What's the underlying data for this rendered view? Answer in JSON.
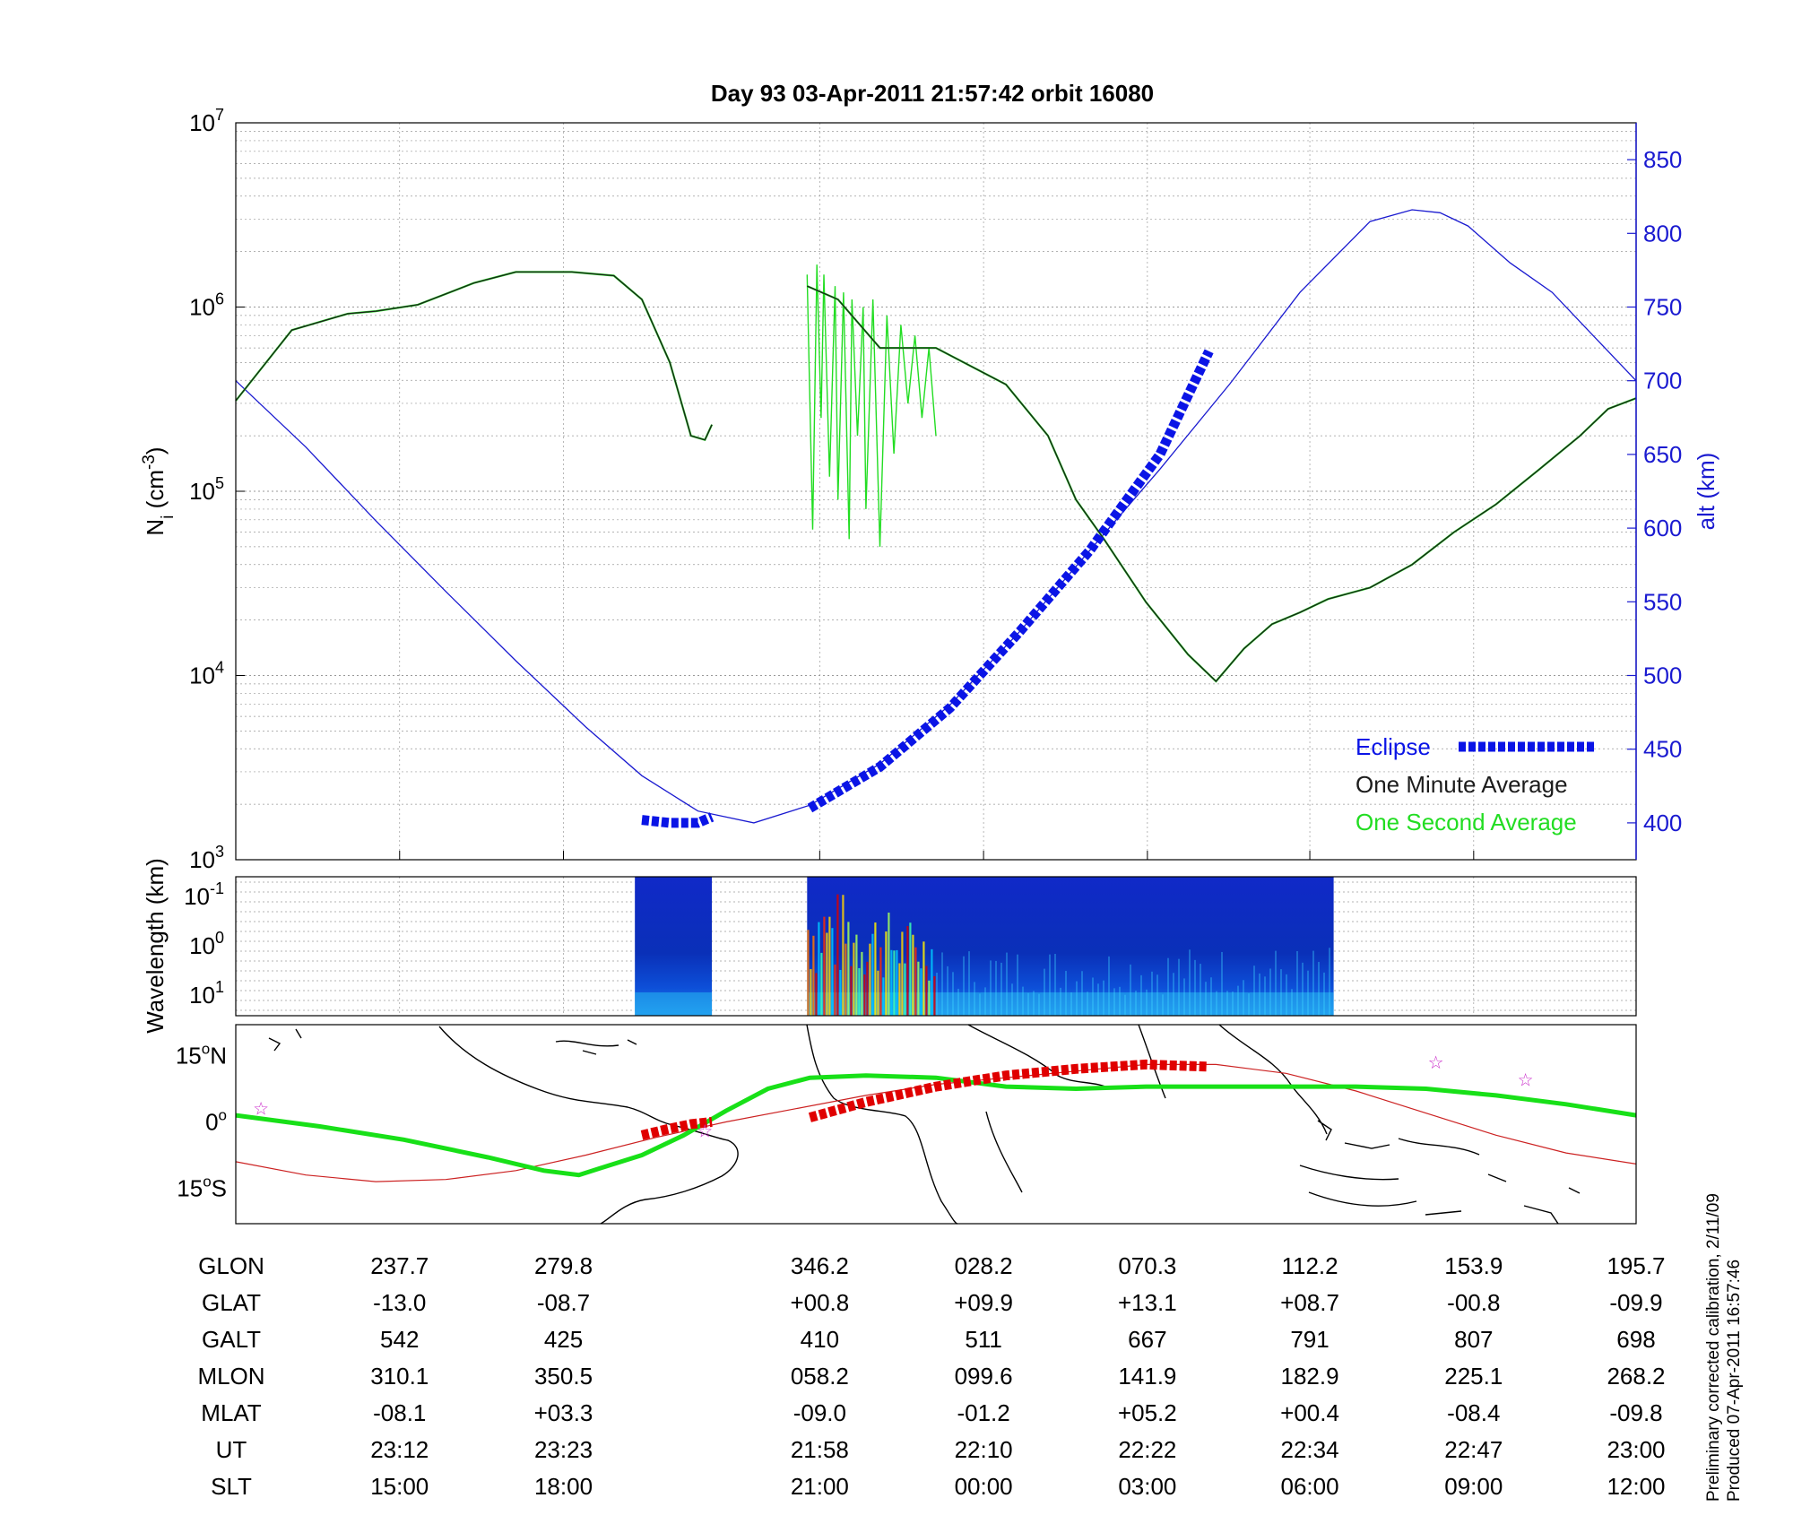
{
  "title": "Day 93  03-Apr-2011 21:57:42   orbit 16080",
  "colors": {
    "one_minute": "#1c1c1c",
    "one_second": "#22dd22",
    "altitude": "#1a1ad0",
    "eclipse": "#0a14e6",
    "track_green": "#18e018",
    "track_red": "#e00000",
    "mag_equator": "#cc2222",
    "star": "#cc33cc"
  },
  "chart_data": [
    {
      "type": "line",
      "panel": "density",
      "ylabel_left": "Ni (cm-3)",
      "ylabel_left_main": "N",
      "ylabel_left_sub": "i",
      "ylabel_left_unit_open": " (cm",
      "ylabel_left_unit_sup": "-3",
      "ylabel_left_unit_close": ")",
      "yscale_left": "log",
      "ylim_left": [
        1000,
        10000000
      ],
      "yticks_left": [
        {
          "base": "10",
          "exp": "3"
        },
        {
          "base": "10",
          "exp": "4"
        },
        {
          "base": "10",
          "exp": "5"
        },
        {
          "base": "10",
          "exp": "6"
        },
        {
          "base": "10",
          "exp": "7"
        }
      ],
      "ylabel_right": "alt (km)",
      "ylim_right": [
        375,
        875
      ],
      "yticks_right": [
        "400",
        "450",
        "500",
        "550",
        "600",
        "650",
        "700",
        "750",
        "800",
        "850"
      ],
      "grid": true,
      "legend_position": "bottom-right",
      "legend": [
        {
          "label": "Eclipse",
          "color": "#0a14e6",
          "style": "thick-dashed"
        },
        {
          "label": "One Minute Average",
          "color": "#1c1c1c",
          "style": "none"
        },
        {
          "label": "One Second Average",
          "color": "#22dd22",
          "style": "none"
        }
      ],
      "x": [
        0.0,
        0.04,
        0.1,
        0.15,
        0.2,
        0.25,
        0.28,
        0.31,
        0.325,
        0.335,
        0.34,
        0.408,
        0.43,
        0.46,
        0.5,
        0.55,
        0.6,
        0.65,
        0.67,
        0.68,
        0.695,
        0.72,
        0.75,
        0.78,
        0.81,
        0.84,
        0.87,
        0.9,
        0.93,
        0.96,
        0.98,
        1.0
      ],
      "series": [
        {
          "name": "One Minute Average",
          "segments": [
            {
              "x": [
                0.0,
                0.04,
                0.08,
                0.1,
                0.13,
                0.17,
                0.2,
                0.24,
                0.27,
                0.29,
                0.31,
                0.325,
                0.335,
                0.34
              ],
              "y": [
                310000,
                750000,
                920000,
                950000,
                1030000,
                1350000,
                1550000,
                1550000,
                1480000,
                1100000,
                500000,
                200000,
                190000,
                230000
              ]
            },
            {
              "x": [
                0.408,
                0.43,
                0.46,
                0.5,
                0.55,
                0.58,
                0.6,
                0.62,
                0.65,
                0.68,
                0.7,
                0.72,
                0.74,
                0.76,
                0.78,
                0.81,
                0.84,
                0.87,
                0.9,
                0.93,
                0.96,
                0.98,
                1.0
              ],
              "y": [
                1300000,
                1100000,
                600000,
                600000,
                380000,
                200000,
                90000,
                55000,
                25000,
                13000,
                9300,
                14000,
                19000,
                22000,
                26000,
                30000,
                40000,
                60000,
                85000,
                130000,
                200000,
                280000,
                320000
              ]
            }
          ]
        },
        {
          "name": "One Second Average",
          "segments": [
            {
              "x": [
                0.408,
                0.412,
                0.415,
                0.418,
                0.42,
                0.424,
                0.428,
                0.43,
                0.434,
                0.438,
                0.44,
                0.444,
                0.448,
                0.45,
                0.455,
                0.46,
                0.465,
                0.47,
                0.475,
                0.48,
                0.485,
                0.49,
                0.495,
                0.5
              ],
              "y": [
                1500000,
                62000,
                1700000,
                250000,
                1500000,
                120000,
                1300000,
                90000,
                1200000,
                55000,
                1100000,
                200000,
                1000000,
                80000,
                1100000,
                50000,
                900000,
                160000,
                800000,
                300000,
                700000,
                250000,
                600000,
                200000
              ]
            }
          ]
        },
        {
          "name": "alt (km)",
          "axis": "right",
          "x": [
            0.0,
            0.05,
            0.1,
            0.15,
            0.2,
            0.25,
            0.29,
            0.33,
            0.37,
            0.41,
            0.46,
            0.51,
            0.56,
            0.61,
            0.66,
            0.71,
            0.76,
            0.81,
            0.84,
            0.86,
            0.88,
            0.91,
            0.94,
            0.97,
            1.0
          ],
          "y": [
            700,
            655,
            605,
            557,
            510,
            465,
            432,
            408,
            400,
            412,
            440,
            480,
            530,
            585,
            640,
            698,
            760,
            808,
            816,
            814,
            805,
            780,
            760,
            730,
            700
          ]
        },
        {
          "name": "Eclipse",
          "axis": "right",
          "segments": [
            {
              "x": [
                0.29,
                0.31,
                0.33,
                0.34
              ],
              "y": [
                402,
                400,
                400,
                404
              ]
            },
            {
              "x": [
                0.41,
                0.46,
                0.51,
                0.56,
                0.61,
                0.66,
                0.695
              ],
              "y": [
                410,
                438,
                478,
                530,
                585,
                650,
                720
              ]
            }
          ]
        }
      ]
    },
    {
      "type": "heatmap",
      "panel": "spectrogram",
      "ylabel": "Wavelength (km)",
      "yticks": [
        {
          "base": "10",
          "exp": "-1"
        },
        {
          "base": "10",
          "exp": "0"
        },
        {
          "base": "10",
          "exp": "1"
        }
      ],
      "x_segments": [
        [
          0.285,
          0.34
        ],
        [
          0.408,
          0.784
        ]
      ],
      "colormap": "jet"
    },
    {
      "type": "map",
      "panel": "ground_track",
      "yticks": [
        {
          "deg": "15",
          "sym": "o",
          "hem": "N"
        },
        {
          "deg": "0",
          "sym": "o",
          "hem": ""
        },
        {
          "deg": "15",
          "sym": "o",
          "hem": "S"
        }
      ],
      "ylim": [
        -23,
        22
      ],
      "tracks": [
        {
          "name": "magnetic equator",
          "color": "#cc2222",
          "x": [
            0.0,
            0.05,
            0.1,
            0.15,
            0.2,
            0.25,
            0.3,
            0.35,
            0.4,
            0.45,
            0.5,
            0.55,
            0.6,
            0.65,
            0.7,
            0.75,
            0.8,
            0.85,
            0.9,
            0.95,
            1.0
          ],
          "y": [
            -9,
            -12,
            -13.5,
            -13,
            -11,
            -7.5,
            -3.5,
            0,
            3,
            6,
            8.5,
            10,
            11.5,
            13,
            13,
            11,
            7,
            2,
            -3,
            -7,
            -9.5
          ]
        },
        {
          "name": "ground track",
          "color": "#18e018",
          "x": [
            0.0,
            0.06,
            0.12,
            0.18,
            0.22,
            0.245,
            0.26,
            0.29,
            0.32,
            0.35,
            0.38,
            0.41,
            0.45,
            0.5,
            0.55,
            0.6,
            0.65,
            0.7,
            0.75,
            0.8,
            0.85,
            0.9,
            0.95,
            1.0
          ],
          "y": [
            1.5,
            -1,
            -4,
            -8,
            -11,
            -12,
            -10.5,
            -7.5,
            -3,
            2.5,
            7.5,
            10,
            10.5,
            10,
            8,
            7.5,
            8,
            8,
            8,
            8,
            7.5,
            6,
            4,
            1.5
          ]
        },
        {
          "name": "eclipse",
          "color": "#e00000",
          "segments": [
            {
              "x": [
                0.29,
                0.31,
                0.325,
                0.34
              ],
              "y": [
                -3,
                -1.5,
                -0.5,
                0
              ]
            },
            {
              "x": [
                0.41,
                0.45,
                0.5,
                0.55,
                0.6,
                0.65,
                0.695
              ],
              "y": [
                1,
                4.5,
                8,
                10.5,
                12,
                13,
                12.5
              ]
            }
          ]
        }
      ],
      "stars": [
        {
          "x": 0.018,
          "y": 3
        },
        {
          "x": 0.335,
          "y": -2
        },
        {
          "x": 0.857,
          "y": 13.5
        },
        {
          "x": 0.921,
          "y": 9.5
        }
      ]
    }
  ],
  "table": {
    "row_labels": [
      "GLON",
      "GLAT",
      "GALT",
      "MLON",
      "MLAT",
      "UT",
      "SLT"
    ],
    "columns": [
      {
        "x": 0.117,
        "values": [
          "237.7",
          "-13.0",
          "542",
          "310.1",
          "-08.1",
          "23:12",
          "15:00"
        ]
      },
      {
        "x": 0.234,
        "values": [
          "279.8",
          "-08.7",
          "425",
          "350.5",
          "+03.3",
          "23:23",
          "18:00"
        ]
      },
      {
        "x": 0.417,
        "values": [
          "346.2",
          "+00.8",
          "410",
          "058.2",
          "-09.0",
          "21:58",
          "21:00"
        ]
      },
      {
        "x": 0.534,
        "values": [
          "028.2",
          "+09.9",
          "511",
          "099.6",
          "-01.2",
          "22:10",
          "00:00"
        ]
      },
      {
        "x": 0.651,
        "values": [
          "070.3",
          "+13.1",
          "667",
          "141.9",
          "+05.2",
          "22:22",
          "03:00"
        ]
      },
      {
        "x": 0.767,
        "values": [
          "112.2",
          "+08.7",
          "791",
          "182.9",
          "+00.4",
          "22:34",
          "06:00"
        ]
      },
      {
        "x": 0.884,
        "values": [
          "153.9",
          "-00.8",
          "807",
          "225.1",
          "-08.4",
          "22:47",
          "09:00"
        ]
      },
      {
        "x": 1.0,
        "values": [
          "195.7",
          "-09.9",
          "698",
          "268.2",
          "-09.8",
          "23:00",
          "12:00"
        ]
      }
    ]
  },
  "footer": {
    "line1": "Preliminary corrected calibration, 2/11/09",
    "line2": "Produced 07-Apr-2011 16:57:46"
  }
}
